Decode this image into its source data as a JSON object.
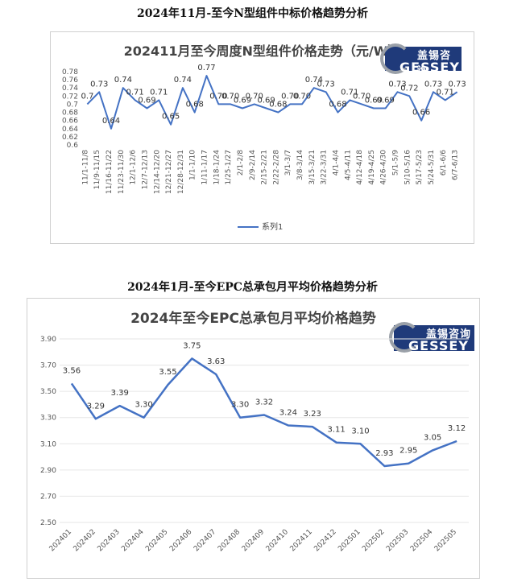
{
  "headings": {
    "top": "2024年11月-至今N型组件中标价格趋势分析",
    "bottom": "2024年1月-至今EPC总承包月平均价格趋势分析"
  },
  "logo": {
    "cn": "盖锡咨询",
    "en": "GESSEY"
  },
  "colors": {
    "line": "#4472c4",
    "grid": "#e6e6e6"
  },
  "chart_data": [
    {
      "type": "line",
      "title": "202411月至今周度N型组件价格走势（元/W）",
      "ylim": [
        0.6,
        0.78
      ],
      "yticks": [
        0.6,
        0.62,
        0.64,
        0.66,
        0.68,
        0.7,
        0.72,
        0.74,
        0.76,
        0.78
      ],
      "categories": [
        "11/1-11/8",
        "11/9-11/15",
        "11/16-11/22",
        "11/23-11/30",
        "12/1-12/6",
        "12/7-12/13",
        "12/14-12/20",
        "12/21-12/27",
        "12/28-12/31",
        "1/1-1/10",
        "1/11-1/17",
        "1/18-1/24",
        "1/25-1/27",
        "2/1-2/8",
        "2/9-2/14",
        "2/15-2/21",
        "2/22-2/28",
        "3/1-3/7",
        "3/8-3/14",
        "3/15-3/21",
        "3/22-3/31",
        "4/1-4/4",
        "4/5-4/11",
        "4/12-4/18",
        "4/19-4/25",
        "4/26-4/30",
        "5/1-5/9",
        "5/10-5/16",
        "5/17-5/23",
        "5/24-5/31",
        "6/1-6/6",
        "6/7-6/13"
      ],
      "series": [
        {
          "name": "系列1",
          "values": [
            0.7,
            0.73,
            0.64,
            0.74,
            0.71,
            0.69,
            0.71,
            0.65,
            0.74,
            0.68,
            0.77,
            0.7,
            0.7,
            0.69,
            0.7,
            0.69,
            0.68,
            0.7,
            0.7,
            0.74,
            0.73,
            0.68,
            0.71,
            0.7,
            0.69,
            0.69,
            0.73,
            0.72,
            0.66,
            0.73,
            0.71,
            0.73
          ],
          "labels": [
            "0.7",
            "0.73",
            "0.64",
            "0.74",
            "0.71",
            "0.69",
            "0.71",
            "0.65",
            "0.74",
            "0.68",
            "0.77",
            "0.70",
            "0.70",
            "0.69",
            "0.70",
            "0.69",
            "0.68",
            "0.70",
            "0.70",
            "0.74",
            "0.73",
            "0.68",
            "0.71",
            "0.70",
            "0.69",
            "0.69",
            "0.73",
            "0.72",
            "0.66",
            "0.73",
            "0.71",
            "0.73"
          ]
        }
      ],
      "legend": "bottom"
    },
    {
      "type": "line",
      "title": "2024年至今EPC总承包月平均价格趋势",
      "ylim": [
        2.5,
        3.9
      ],
      "yticks": [
        "2.50",
        "2.70",
        "2.90",
        "3.10",
        "3.30",
        "3.50",
        "3.70",
        "3.90"
      ],
      "categories": [
        "202401",
        "202402",
        "202403",
        "202404",
        "202405",
        "202406",
        "202407",
        "202408",
        "202409",
        "202410",
        "202411",
        "202412",
        "202501",
        "202502",
        "202503",
        "202504",
        "202505"
      ],
      "series": [
        {
          "values": [
            3.56,
            3.29,
            3.39,
            3.3,
            3.55,
            3.75,
            3.63,
            3.3,
            3.32,
            3.24,
            3.23,
            3.11,
            3.1,
            2.93,
            2.95,
            3.05,
            3.12
          ],
          "labels": [
            "3.56",
            "3.29",
            "3.39",
            "3.30",
            "3.55",
            "3.75",
            "3.63",
            "3.30",
            "3.32",
            "3.24",
            "3.23",
            "3.11",
            "3.10",
            "2.93",
            "2.95",
            "3.05",
            "3.12"
          ]
        }
      ]
    }
  ]
}
